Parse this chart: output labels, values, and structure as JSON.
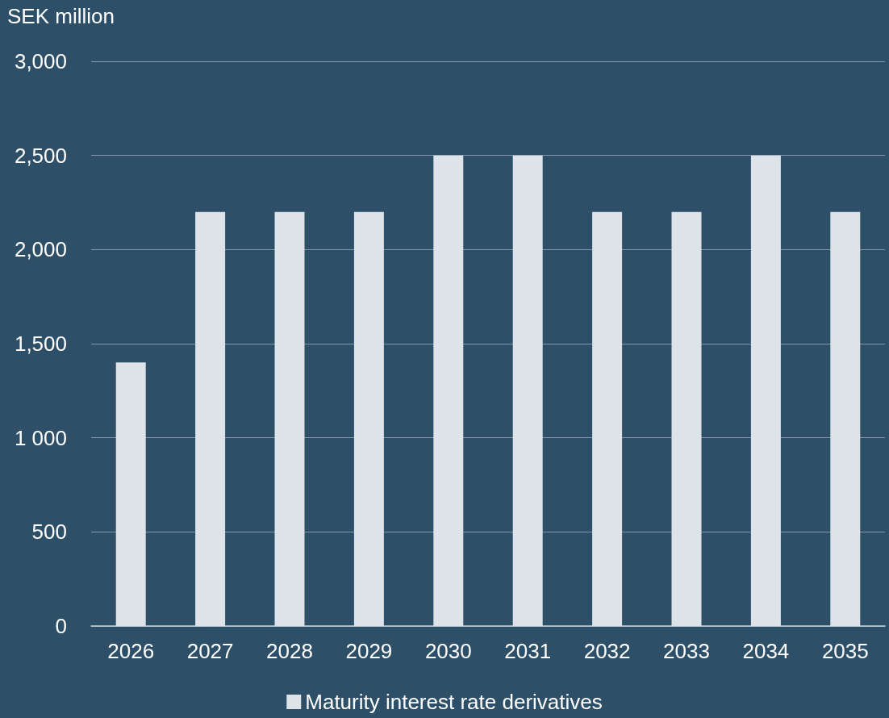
{
  "chart_data": {
    "type": "bar",
    "ylabel": "SEK million",
    "categories": [
      "2026",
      "2027",
      "2028",
      "2029",
      "2030",
      "2031",
      "2032",
      "2033",
      "2034",
      "2035"
    ],
    "series": [
      {
        "name": "Maturity interest rate derivatives",
        "color": "#dde3e8",
        "values": [
          1400,
          2200,
          2200,
          2200,
          2500,
          2500,
          2200,
          2200,
          2500,
          2200
        ]
      }
    ],
    "ylim": [
      0,
      3000
    ],
    "yticks": [
      0,
      500,
      {
        "value": 1000,
        "label": "1 000"
      },
      {
        "value": 1500,
        "label": "1,500"
      },
      {
        "value": 2000,
        "label": "2,000"
      },
      {
        "value": 2500,
        "label": "2,500"
      },
      {
        "value": 3000,
        "label": "3,000"
      }
    ],
    "grid": "y",
    "legend": "bottom"
  }
}
